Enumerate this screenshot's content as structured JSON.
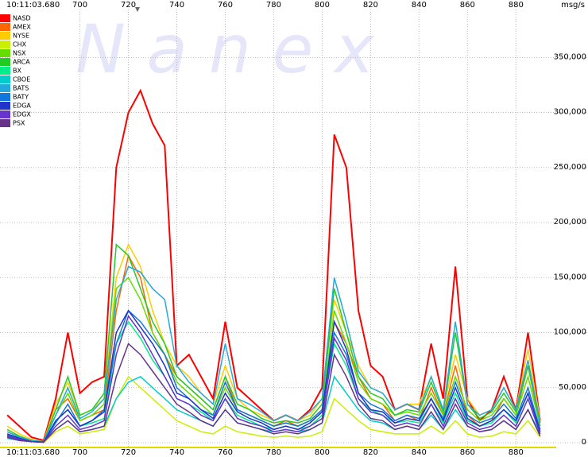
{
  "chart_data": {
    "type": "line",
    "watermark": "N a n e x",
    "time_label": "10:11:03.680",
    "y_unit": "msg/s",
    "x": [
      670,
      675,
      680,
      685,
      690,
      695,
      700,
      705,
      710,
      715,
      720,
      725,
      730,
      735,
      740,
      745,
      750,
      755,
      760,
      765,
      770,
      775,
      780,
      785,
      790,
      795,
      800,
      805,
      810,
      815,
      820,
      825,
      830,
      835,
      840,
      845,
      850,
      855,
      860,
      865,
      870,
      875,
      880,
      885,
      890
    ],
    "xlim": [
      667,
      895
    ],
    "xticks": [
      700,
      720,
      740,
      760,
      780,
      800,
      820,
      840,
      860,
      880
    ],
    "ylim": [
      0,
      395000
    ],
    "yticks": [
      0,
      {
        "value": 50000,
        "label": "50,000"
      },
      {
        "value": 100000,
        "label": "100,000"
      },
      {
        "value": 150000,
        "label": "150,000"
      },
      {
        "value": 200000,
        "label": "200,000"
      },
      {
        "value": 250000,
        "label": "250,000"
      },
      {
        "value": 300000,
        "label": "300,000"
      },
      {
        "value": 350000,
        "label": "350,000"
      }
    ],
    "grid": true,
    "series": [
      {
        "name": "NASD",
        "color": "#ff0000",
        "values": [
          25000,
          15000,
          5000,
          2000,
          40000,
          100000,
          45000,
          55000,
          60000,
          250000,
          300000,
          320000,
          290000,
          270000,
          70000,
          80000,
          60000,
          40000,
          110000,
          50000,
          40000,
          30000,
          20000,
          25000,
          20000,
          30000,
          50000,
          280000,
          250000,
          120000,
          70000,
          60000,
          30000,
          35000,
          30000,
          90000,
          40000,
          160000,
          40000,
          20000,
          30000,
          60000,
          30000,
          100000,
          20000
        ]
      },
      {
        "name": "AMEX",
        "color": "#ff6600",
        "values": [
          10000,
          5000,
          2000,
          1000,
          30000,
          40000,
          20000,
          25000,
          30000,
          120000,
          170000,
          150000,
          100000,
          80000,
          60000,
          50000,
          40000,
          30000,
          60000,
          30000,
          25000,
          20000,
          15000,
          20000,
          15000,
          20000,
          30000,
          110000,
          90000,
          60000,
          40000,
          35000,
          20000,
          25000,
          20000,
          50000,
          25000,
          70000,
          25000,
          15000,
          20000,
          40000,
          25000,
          70000,
          15000
        ]
      },
      {
        "name": "NYSE",
        "color": "#ffcc00",
        "values": [
          15000,
          8000,
          3000,
          1000,
          35000,
          55000,
          25000,
          30000,
          40000,
          150000,
          180000,
          160000,
          120000,
          90000,
          70000,
          60000,
          45000,
          35000,
          70000,
          40000,
          30000,
          25000,
          20000,
          25000,
          20000,
          25000,
          40000,
          130000,
          100000,
          70000,
          50000,
          45000,
          30000,
          35000,
          35000,
          60000,
          30000,
          80000,
          40000,
          25000,
          30000,
          50000,
          30000,
          85000,
          20000
        ]
      },
      {
        "name": "CHX",
        "color": "#ccee00",
        "values": [
          5000,
          2000,
          1000,
          0,
          10000,
          15000,
          8000,
          10000,
          12000,
          40000,
          60000,
          50000,
          40000,
          30000,
          20000,
          15000,
          10000,
          8000,
          15000,
          10000,
          8000,
          6000,
          5000,
          6000,
          5000,
          6000,
          10000,
          40000,
          30000,
          20000,
          12000,
          10000,
          8000,
          8000,
          8000,
          15000,
          8000,
          20000,
          8000,
          5000,
          6000,
          10000,
          8000,
          20000,
          5000
        ]
      },
      {
        "name": "NSX",
        "color": "#66dd00",
        "values": [
          8000,
          4000,
          2000,
          500,
          25000,
          45000,
          20000,
          25000,
          35000,
          140000,
          150000,
          130000,
          100000,
          80000,
          55000,
          45000,
          35000,
          25000,
          50000,
          30000,
          25000,
          20000,
          15000,
          18000,
          15000,
          20000,
          30000,
          120000,
          90000,
          55000,
          40000,
          35000,
          25000,
          28000,
          25000,
          45000,
          25000,
          60000,
          30000,
          20000,
          25000,
          40000,
          25000,
          60000,
          15000
        ]
      },
      {
        "name": "ARCA",
        "color": "#22cc22",
        "values": [
          12000,
          6000,
          2000,
          1000,
          30000,
          60000,
          25000,
          30000,
          45000,
          180000,
          170000,
          140000,
          110000,
          90000,
          60000,
          50000,
          40000,
          30000,
          60000,
          35000,
          30000,
          22000,
          18000,
          20000,
          18000,
          22000,
          35000,
          140000,
          100000,
          60000,
          45000,
          40000,
          25000,
          30000,
          28000,
          55000,
          28000,
          100000,
          35000,
          22000,
          28000,
          45000,
          28000,
          70000,
          18000
        ]
      },
      {
        "name": "BX",
        "color": "#00ee88",
        "values": [
          6000,
          3000,
          1000,
          500,
          20000,
          30000,
          15000,
          18000,
          22000,
          90000,
          110000,
          95000,
          75000,
          60000,
          40000,
          35000,
          28000,
          20000,
          40000,
          25000,
          20000,
          15000,
          12000,
          15000,
          12000,
          15000,
          25000,
          90000,
          70000,
          40000,
          30000,
          25000,
          18000,
          20000,
          18000,
          35000,
          18000,
          45000,
          20000,
          15000,
          18000,
          30000,
          18000,
          45000,
          12000
        ]
      },
      {
        "name": "CBOE",
        "color": "#00cccc",
        "values": [
          4000,
          2000,
          1000,
          500,
          12000,
          20000,
          10000,
          12000,
          15000,
          40000,
          55000,
          60000,
          50000,
          40000,
          30000,
          25000,
          20000,
          15000,
          30000,
          18000,
          15000,
          12000,
          10000,
          12000,
          10000,
          12000,
          18000,
          60000,
          45000,
          30000,
          20000,
          18000,
          12000,
          15000,
          12000,
          25000,
          12000,
          30000,
          15000,
          10000,
          12000,
          20000,
          12000,
          30000,
          8000
        ]
      },
      {
        "name": "BATS",
        "color": "#22aadd",
        "values": [
          10000,
          5000,
          2000,
          1000,
          25000,
          50000,
          22000,
          28000,
          40000,
          130000,
          160000,
          155000,
          140000,
          130000,
          70000,
          55000,
          45000,
          35000,
          90000,
          40000,
          35000,
          28000,
          20000,
          25000,
          20000,
          28000,
          40000,
          150000,
          110000,
          65000,
          50000,
          45000,
          30000,
          35000,
          30000,
          60000,
          30000,
          110000,
          35000,
          25000,
          30000,
          50000,
          30000,
          75000,
          18000
        ]
      },
      {
        "name": "BATY",
        "color": "#1177dd",
        "values": [
          7000,
          4000,
          1000,
          500,
          18000,
          35000,
          15000,
          20000,
          30000,
          90000,
          120000,
          110000,
          95000,
          80000,
          50000,
          40000,
          30000,
          25000,
          55000,
          30000,
          25000,
          20000,
          15000,
          18000,
          15000,
          20000,
          30000,
          100000,
          80000,
          45000,
          35000,
          30000,
          20000,
          25000,
          22000,
          40000,
          22000,
          55000,
          25000,
          18000,
          22000,
          35000,
          22000,
          50000,
          12000
        ]
      },
      {
        "name": "EDGA",
        "color": "#2233cc",
        "values": [
          8000,
          4000,
          1000,
          500,
          20000,
          30000,
          15000,
          20000,
          28000,
          100000,
          120000,
          105000,
          90000,
          70000,
          45000,
          40000,
          30000,
          22000,
          45000,
          28000,
          22000,
          18000,
          12000,
          15000,
          12000,
          18000,
          28000,
          110000,
          85000,
          45000,
          30000,
          28000,
          18000,
          22000,
          20000,
          40000,
          20000,
          50000,
          22000,
          15000,
          20000,
          30000,
          20000,
          45000,
          10000
        ]
      },
      {
        "name": "EDGX",
        "color": "#6633cc",
        "values": [
          6000,
          3000,
          1000,
          500,
          15000,
          25000,
          12000,
          15000,
          20000,
          80000,
          115000,
          100000,
          80000,
          60000,
          40000,
          35000,
          25000,
          20000,
          40000,
          22000,
          18000,
          15000,
          10000,
          12000,
          10000,
          15000,
          22000,
          95000,
          75000,
          40000,
          28000,
          25000,
          15000,
          18000,
          15000,
          35000,
          15000,
          40000,
          18000,
          12000,
          15000,
          25000,
          15000,
          40000,
          8000
        ]
      },
      {
        "name": "PSX",
        "color": "#663388",
        "values": [
          5000,
          2000,
          1000,
          500,
          12000,
          20000,
          10000,
          12000,
          15000,
          60000,
          90000,
          80000,
          65000,
          50000,
          35000,
          28000,
          20000,
          15000,
          30000,
          18000,
          15000,
          12000,
          8000,
          10000,
          8000,
          12000,
          18000,
          80000,
          60000,
          35000,
          22000,
          20000,
          12000,
          15000,
          12000,
          28000,
          12000,
          35000,
          15000,
          10000,
          12000,
          20000,
          12000,
          30000,
          6000
        ]
      }
    ]
  }
}
